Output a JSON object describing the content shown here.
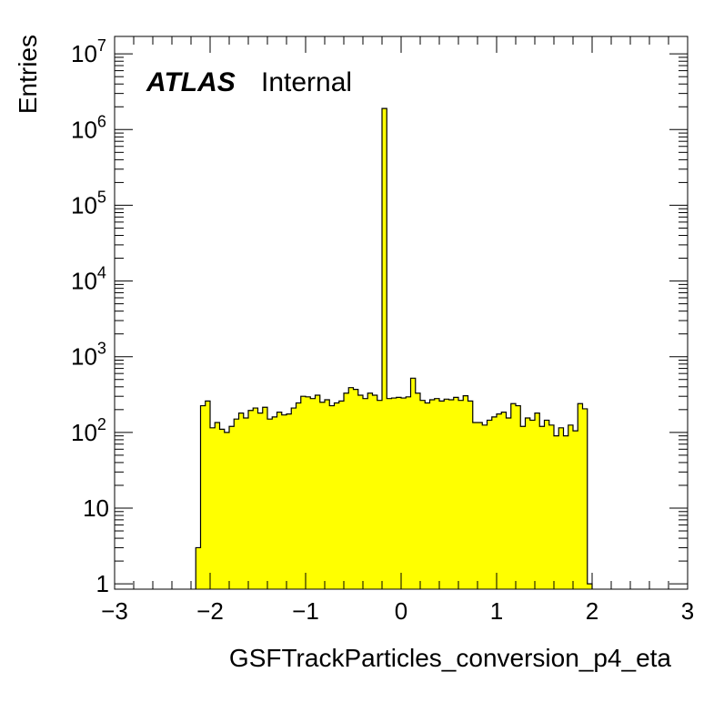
{
  "chart_data": {
    "type": "histogram",
    "xlabel": "GSFTrackParticles_conversion_p4_eta",
    "ylabel": "Entries",
    "xlim": [
      -3,
      3
    ],
    "ylim": [
      0.85,
      17000000
    ],
    "ylog": true,
    "experiment_label": "ATLAS",
    "status_label": "Internal",
    "fill_color": "#ffff00",
    "line_color": "#000000",
    "x_ticks": [
      {
        "value": -3,
        "label": "−3"
      },
      {
        "value": -2,
        "label": "−2"
      },
      {
        "value": -1,
        "label": "−1"
      },
      {
        "value": 0,
        "label": "0"
      },
      {
        "value": 1,
        "label": "1"
      },
      {
        "value": 2,
        "label": "2"
      },
      {
        "value": 3,
        "label": "3"
      }
    ],
    "y_ticks": [
      {
        "value": 1,
        "base": "1",
        "exp": ""
      },
      {
        "value": 10,
        "base": "10",
        "exp": ""
      },
      {
        "value": 100,
        "base": "10",
        "exp": "2"
      },
      {
        "value": 1000,
        "base": "10",
        "exp": "3"
      },
      {
        "value": 10000,
        "base": "10",
        "exp": "4"
      },
      {
        "value": 100000,
        "base": "10",
        "exp": "5"
      },
      {
        "value": 1000000,
        "base": "10",
        "exp": "6"
      },
      {
        "value": 10000000,
        "base": "10",
        "exp": "7"
      }
    ],
    "bin_edges_start": -2.15,
    "bin_width": 0.05,
    "values": [
      3,
      225,
      260,
      115,
      135,
      110,
      100,
      120,
      150,
      180,
      155,
      195,
      210,
      180,
      215,
      150,
      160,
      185,
      170,
      175,
      210,
      245,
      300,
      295,
      280,
      310,
      250,
      270,
      225,
      245,
      260,
      330,
      390,
      370,
      310,
      280,
      330,
      310,
      265,
      1900000,
      280,
      285,
      290,
      285,
      295,
      520,
      330,
      265,
      245,
      270,
      280,
      260,
      275,
      270,
      290,
      265,
      305,
      260,
      135,
      135,
      125,
      145,
      160,
      175,
      185,
      155,
      240,
      225,
      120,
      155,
      145,
      180,
      120,
      145,
      125,
      90,
      115,
      90,
      125,
      105,
      240,
      205,
      1
    ]
  }
}
